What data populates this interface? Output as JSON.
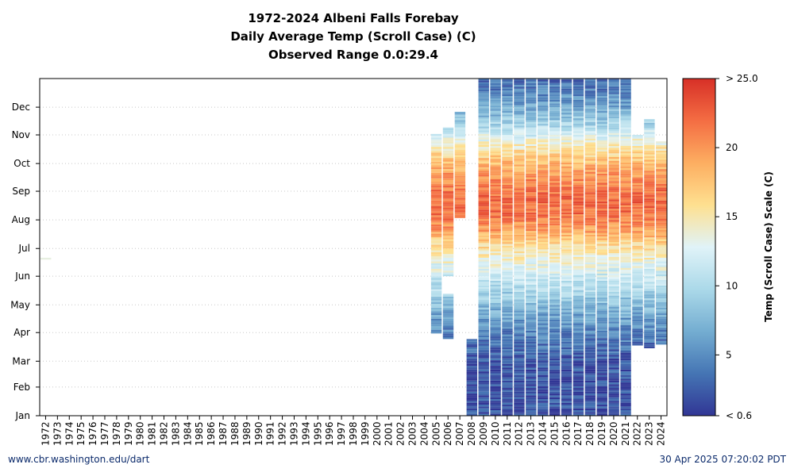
{
  "title_lines": [
    "1972-2024 Albeni Falls Forebay",
    "Daily Average Temp (Scroll Case) (C)",
    "Observed Range 0.0:29.4"
  ],
  "footer_left": "www.cbr.washington.edu/dart",
  "footer_right": "30 Apr 2025 07:20:02 PDT",
  "chart_data": {
    "type": "heatmap",
    "title": "1972-2024 Albeni Falls Forebay Daily Average Temp (Scroll Case) (C) Observed Range 0.0:29.4",
    "x_categories": [
      "1972",
      "1973",
      "1974",
      "1975",
      "1976",
      "1977",
      "1978",
      "1979",
      "1980",
      "1981",
      "1982",
      "1983",
      "1984",
      "1985",
      "1986",
      "1987",
      "1988",
      "1989",
      "1990",
      "1991",
      "1992",
      "1993",
      "1994",
      "1995",
      "1996",
      "1997",
      "1998",
      "1999",
      "2000",
      "2001",
      "2002",
      "2003",
      "2004",
      "2005",
      "2006",
      "2007",
      "2008",
      "2009",
      "2010",
      "2011",
      "2012",
      "2013",
      "2014",
      "2015",
      "2016",
      "2017",
      "2018",
      "2019",
      "2020",
      "2021",
      "2022",
      "2023",
      "2024"
    ],
    "y_ticks": [
      "Jan",
      "Feb",
      "Mar",
      "Apr",
      "May",
      "Jun",
      "Jul",
      "Aug",
      "Sep",
      "Oct",
      "Nov",
      "Dec"
    ],
    "y_range_days": [
      1,
      366
    ],
    "grid": true,
    "colorbar": {
      "label": "Temp (Scroll Case) Scale (C)",
      "min": 0.6,
      "max": 25.0,
      "tick_values": [
        0.6,
        5,
        10,
        15,
        20,
        25.0
      ],
      "tick_labels": [
        "< 0.6",
        "5",
        "10",
        "15",
        "20",
        "> 25.0"
      ],
      "colors": [
        "#313695",
        "#4575b4",
        "#74add1",
        "#abd9e9",
        "#e0f3f8",
        "#fee090",
        "#fdae61",
        "#f46d43",
        "#d73027"
      ]
    },
    "coverage_day_ranges": {
      "1972": [
        [
          170,
          172
        ]
      ],
      "2005": [
        [
          90,
          306
        ]
      ],
      "2006": [
        [
          84,
          133
        ],
        [
          152,
          313
        ]
      ],
      "2007": [
        [
          215,
          330
        ]
      ],
      "2008": [
        [
          1,
          29
        ],
        [
          29,
          84
        ]
      ],
      "2009": [
        [
          1,
          84
        ],
        [
          84,
          366
        ]
      ],
      "2010": [
        [
          1,
          366
        ]
      ],
      "2011": [
        [
          1,
          366
        ]
      ],
      "2012": [
        [
          1,
          366
        ]
      ],
      "2013": [
        [
          1,
          366
        ]
      ],
      "2014": [
        [
          1,
          366
        ]
      ],
      "2015": [
        [
          1,
          366
        ]
      ],
      "2016": [
        [
          1,
          366
        ]
      ],
      "2017": [
        [
          1,
          366
        ]
      ],
      "2018": [
        [
          1,
          366
        ]
      ],
      "2019": [
        [
          1,
          366
        ]
      ],
      "2020": [
        [
          1,
          366
        ]
      ],
      "2021": [
        [
          1,
          366
        ]
      ],
      "2022": [
        [
          77,
          305
        ]
      ],
      "2023": [
        [
          74,
          322
        ]
      ],
      "2024": [
        [
          78,
          298
        ]
      ]
    },
    "seasonal_temperature_profile_c": {
      "days": [
        1,
        30,
        60,
        90,
        110,
        130,
        150,
        170,
        190,
        200,
        220,
        240,
        260,
        280,
        300,
        320,
        340,
        366
      ],
      "values": [
        2.0,
        1.8,
        2.2,
        4.5,
        6.5,
        9.0,
        11.5,
        14.0,
        17.0,
        19.5,
        22.0,
        22.0,
        20.0,
        17.0,
        13.0,
        8.5,
        5.5,
        3.0
      ]
    }
  }
}
